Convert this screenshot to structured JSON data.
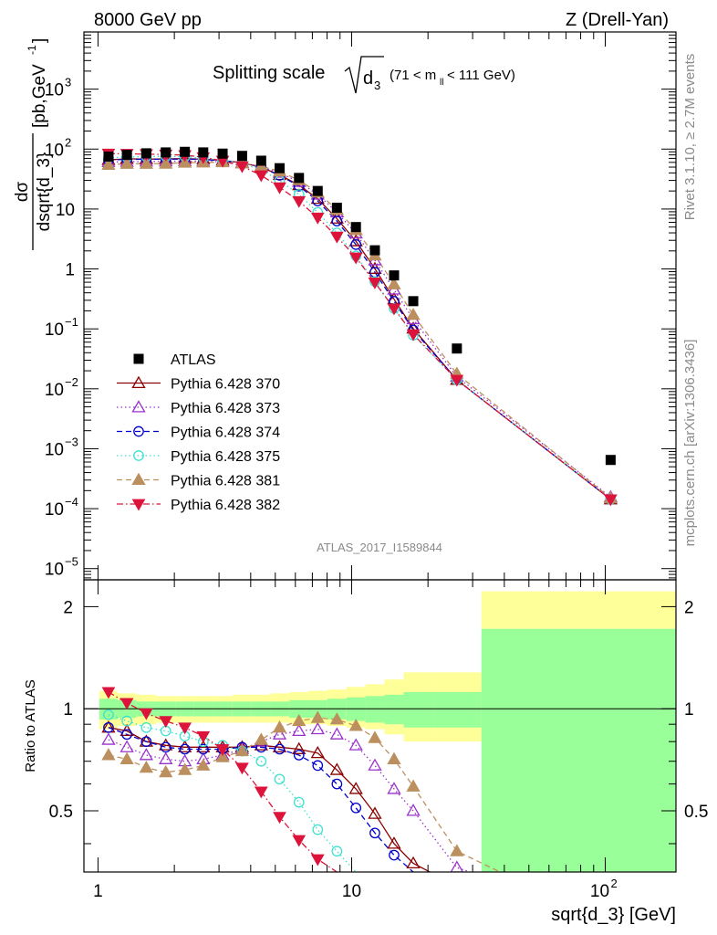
{
  "header": {
    "left_label": "8000 GeV pp",
    "right_label": "Z (Drell-Yan)"
  },
  "title": {
    "prefix": "Splitting scale",
    "symbol": "d",
    "subscript": "3",
    "range_pre": "(71 < m",
    "range_sub": "ll",
    "range_post": " < 111 GeV)"
  },
  "side_labels": {
    "rivet": "Rivet 3.1.10, ≥ 2.7M events",
    "mcplots": "mcplots.cern.ch [arXiv:1306.3436]"
  },
  "analysis_id": "ATLAS_2017_I1589844",
  "axes": {
    "xlabel": "sqrt{d_3} [GeV]",
    "ylabel_top_num": "dσ",
    "ylabel_top_den": "dsqrt{d_3}",
    "ylabel_top_units": "[pb,GeV",
    "ylabel_top_units_exp": "-1",
    "ylabel_top_units_close": "]",
    "ylabel_bottom": "Ratio to ATLAS",
    "x_tick_labels": [
      "1",
      "10",
      "10"
    ],
    "x_tick_label_exps": [
      "",
      "",
      "2"
    ],
    "y_tick_labels_top": [
      {
        "base": "10",
        "exp": "3"
      },
      {
        "base": "10",
        "exp": "2"
      },
      {
        "base": "10",
        "exp": ""
      },
      {
        "base": "1",
        "exp": ""
      },
      {
        "base": "10",
        "exp": "−1"
      },
      {
        "base": "10",
        "exp": "−2"
      },
      {
        "base": "10",
        "exp": "−3"
      },
      {
        "base": "10",
        "exp": "−4"
      },
      {
        "base": "10",
        "exp": "−5"
      }
    ],
    "y_tick_labels_bottom": [
      "2",
      "1",
      "0.5"
    ]
  },
  "chart_data": {
    "type": "scatter",
    "x_scale": "log",
    "y_scale": "log",
    "xlim": [
      0.88,
      190
    ],
    "ylim_top": [
      6.5e-06,
      9000
    ],
    "ylim_bottom": [
      0.33,
      2.4
    ],
    "x": [
      1.1,
      1.3,
      1.55,
      1.85,
      2.2,
      2.6,
      3.1,
      3.7,
      4.4,
      5.2,
      6.2,
      7.35,
      8.75,
      10.4,
      12.35,
      14.7,
      17.5,
      26.0,
      105.0
    ],
    "atlas": [
      75,
      80,
      85,
      88,
      90,
      88,
      84,
      77,
      64,
      48,
      33,
      20,
      10.5,
      5.0,
      2.05,
      0.78,
      0.29,
      0.047,
      0.00065
    ],
    "bands": {
      "yellow_lo": [
        0.87,
        0.89,
        0.9,
        0.91,
        0.91,
        0.91,
        0.91,
        0.91,
        0.91,
        0.91,
        0.9,
        0.9,
        0.89,
        0.88,
        0.87,
        0.84,
        0.8,
        0.8,
        1.72
      ],
      "yellow_hi": [
        1.13,
        1.11,
        1.1,
        1.09,
        1.09,
        1.09,
        1.09,
        1.1,
        1.1,
        1.11,
        1.12,
        1.13,
        1.14,
        1.16,
        1.18,
        1.22,
        1.28,
        1.28,
        2.22
      ],
      "green_lo": [
        0.93,
        0.94,
        0.95,
        0.95,
        0.95,
        0.95,
        0.95,
        0.95,
        0.95,
        0.95,
        0.94,
        0.94,
        0.93,
        0.92,
        0.91,
        0.9,
        0.88,
        0.88,
        0.3
      ],
      "green_hi": [
        1.07,
        1.06,
        1.05,
        1.05,
        1.05,
        1.05,
        1.05,
        1.05,
        1.05,
        1.05,
        1.06,
        1.06,
        1.07,
        1.08,
        1.09,
        1.1,
        1.12,
        1.12,
        1.72
      ]
    },
    "series": [
      {
        "name": "ATLAS",
        "color": "#000000",
        "marker": "square-filled",
        "line": "none"
      },
      {
        "name": "Pythia 6.428 370",
        "color": "#8b0000",
        "marker": "triangle-up-open",
        "line": "solid",
        "ratio": [
          0.88,
          0.86,
          0.8,
          0.78,
          0.77,
          0.77,
          0.77,
          0.77,
          0.78,
          0.77,
          0.76,
          0.74,
          0.66,
          0.58,
          0.49,
          0.4,
          0.35,
          0.3,
          0.22
        ]
      },
      {
        "name": "Pythia 6.428 373",
        "color": "#9932cc",
        "marker": "triangle-up-open",
        "line": "dotted",
        "ratio": [
          0.81,
          0.77,
          0.73,
          0.71,
          0.7,
          0.71,
          0.73,
          0.76,
          0.8,
          0.84,
          0.86,
          0.87,
          0.84,
          0.78,
          0.68,
          0.58,
          0.5,
          0.34,
          0.24
        ]
      },
      {
        "name": "Pythia 6.428 374",
        "color": "#0000cd",
        "marker": "circle-open",
        "line": "dashed",
        "ratio": [
          0.88,
          0.84,
          0.8,
          0.77,
          0.76,
          0.76,
          0.76,
          0.77,
          0.77,
          0.76,
          0.73,
          0.68,
          0.6,
          0.51,
          0.43,
          0.37,
          0.33,
          0.3,
          0.22
        ]
      },
      {
        "name": "Pythia 6.428 375",
        "color": "#40e0d0",
        "marker": "circle-open",
        "line": "dotted",
        "ratio": [
          0.96,
          0.92,
          0.88,
          0.86,
          0.83,
          0.8,
          0.78,
          0.75,
          0.7,
          0.62,
          0.53,
          0.44,
          0.38,
          0.33,
          0.3,
          0.28,
          0.27,
          0.3,
          0.22
        ]
      },
      {
        "name": "Pythia 6.428 381",
        "color": "#bc8f5f",
        "marker": "triangle-up-filled",
        "line": "dashed",
        "ratio": [
          0.73,
          0.71,
          0.67,
          0.65,
          0.66,
          0.68,
          0.72,
          0.75,
          0.81,
          0.88,
          0.92,
          0.94,
          0.93,
          0.89,
          0.82,
          0.71,
          0.59,
          0.38,
          0.23
        ]
      },
      {
        "name": "Pythia 6.428 382",
        "color": "#dc143c",
        "marker": "triangle-down-filled",
        "line": "dashdot",
        "ratio": [
          1.12,
          1.04,
          0.97,
          0.92,
          0.88,
          0.83,
          0.76,
          0.67,
          0.57,
          0.48,
          0.41,
          0.36,
          0.33,
          0.31,
          0.29,
          0.28,
          0.28,
          0.3,
          0.22
        ]
      }
    ]
  }
}
